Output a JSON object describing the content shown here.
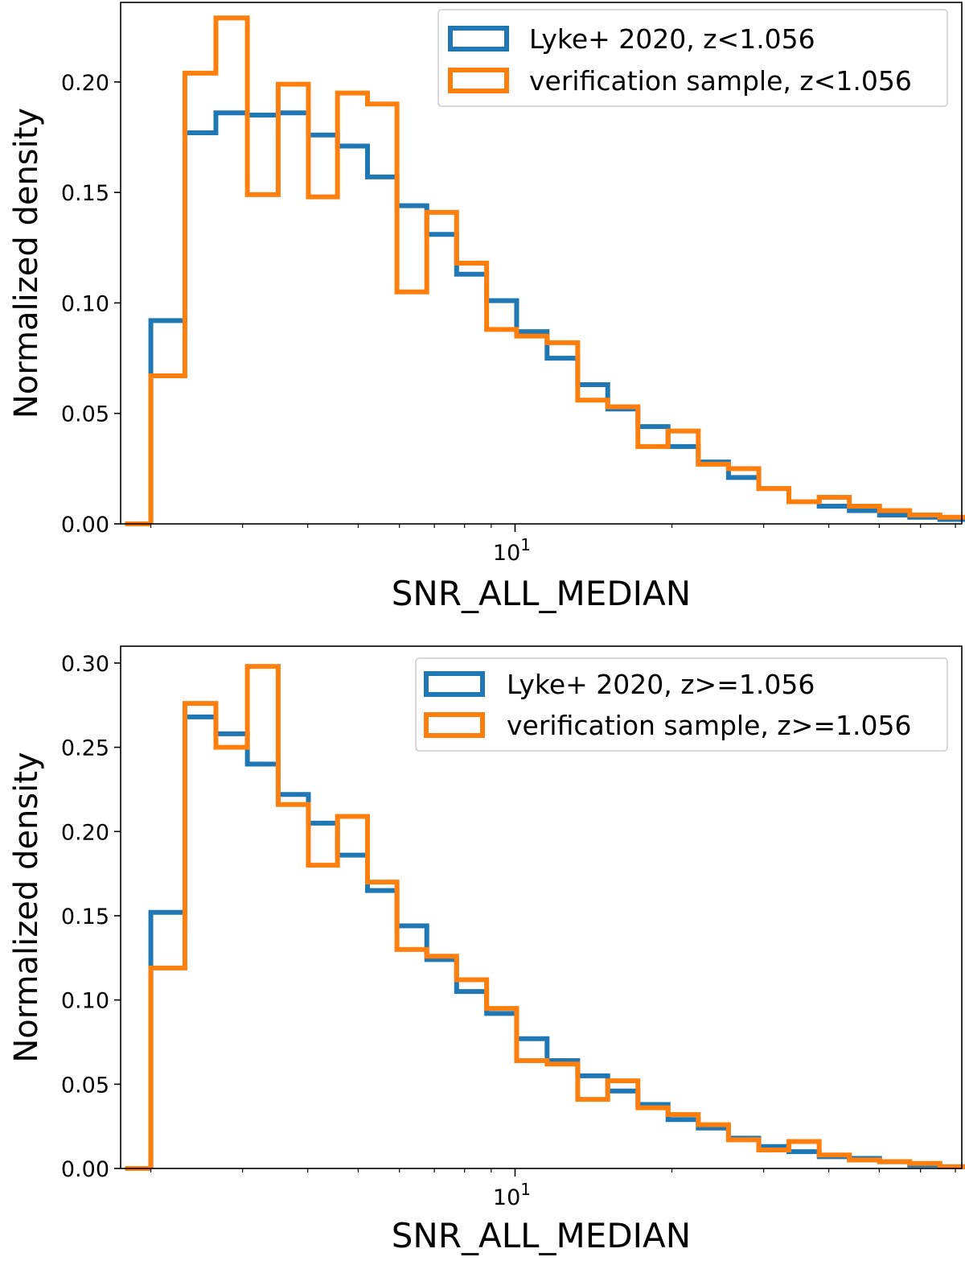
{
  "chart_data": [
    {
      "type": "histogram-step",
      "xscale": "log",
      "xlabel": "SNR_ALL_MEDIAN",
      "ylabel": "Normalized density",
      "xlim": [
        1.75,
        72.0
      ],
      "ylim": [
        0.0,
        0.236
      ],
      "x_ticks": [
        {
          "value": 10,
          "base": "10",
          "exp": "1"
        }
      ],
      "y_ticks": [
        "0.00",
        "0.05",
        "0.10",
        "0.15",
        "0.20"
      ],
      "legend_position": "top-right",
      "series": [
        {
          "name": "Lyke+ 2020, z<1.056",
          "color": "#1f77b4",
          "edges": [
            2.0,
            2.325,
            2.666,
            3.064,
            3.511,
            4.012,
            4.563,
            5.21,
            5.934,
            6.77,
            7.723,
            8.82,
            10.07,
            11.52,
            13.19,
            15.06,
            17.21,
            19.66,
            22.47,
            25.68,
            29.36,
            33.54,
            38.34,
            43.81,
            50.06,
            57.2,
            65.36
          ],
          "values": [
            0.092,
            0.177,
            0.186,
            0.185,
            0.186,
            0.176,
            0.171,
            0.157,
            0.144,
            0.131,
            0.113,
            0.101,
            0.087,
            0.075,
            0.063,
            0.052,
            0.044,
            0.035,
            0.028,
            0.021,
            0.016,
            0.01,
            0.008,
            0.006,
            0.004,
            0.003,
            0.002
          ]
        },
        {
          "name": "verification sample, z<1.056",
          "color": "#ff7f0e",
          "edges": [
            2.0,
            2.325,
            2.666,
            3.064,
            3.511,
            4.012,
            4.563,
            5.21,
            5.934,
            6.77,
            7.723,
            8.82,
            10.07,
            11.52,
            13.19,
            15.06,
            17.21,
            19.66,
            22.47,
            25.68,
            29.36,
            33.54,
            38.34,
            43.81,
            50.06,
            57.2,
            65.36
          ],
          "values": [
            0.067,
            0.204,
            0.229,
            0.149,
            0.199,
            0.148,
            0.195,
            0.19,
            0.105,
            0.141,
            0.118,
            0.088,
            0.085,
            0.082,
            0.056,
            0.053,
            0.035,
            0.042,
            0.027,
            0.025,
            0.016,
            0.01,
            0.012,
            0.008,
            0.006,
            0.004,
            0.003
          ]
        }
      ]
    },
    {
      "type": "histogram-step",
      "xscale": "log",
      "xlabel": "SNR_ALL_MEDIAN",
      "ylabel": "Normalized density",
      "xlim": [
        1.75,
        72.0
      ],
      "ylim": [
        0.0,
        0.31
      ],
      "x_ticks": [
        {
          "value": 10,
          "base": "10",
          "exp": "1"
        }
      ],
      "y_ticks": [
        "0.00",
        "0.05",
        "0.10",
        "0.15",
        "0.20",
        "0.25",
        "0.30"
      ],
      "legend_position": "top-right",
      "series": [
        {
          "name": "Lyke+ 2020, z>=1.056",
          "color": "#1f77b4",
          "edges": [
            2.0,
            2.325,
            2.666,
            3.064,
            3.511,
            4.012,
            4.563,
            5.21,
            5.934,
            6.77,
            7.723,
            8.82,
            10.07,
            11.52,
            13.19,
            15.06,
            17.21,
            19.66,
            22.47,
            25.68,
            29.36,
            33.54,
            38.34,
            43.81,
            50.06,
            57.2,
            65.36
          ],
          "values": [
            0.152,
            0.268,
            0.258,
            0.24,
            0.222,
            0.205,
            0.186,
            0.165,
            0.144,
            0.124,
            0.105,
            0.092,
            0.077,
            0.064,
            0.055,
            0.046,
            0.038,
            0.029,
            0.024,
            0.018,
            0.013,
            0.01,
            0.007,
            0.006,
            0.004,
            0.002,
            0.001
          ]
        },
        {
          "name": "verification sample, z>=1.056",
          "color": "#ff7f0e",
          "edges": [
            2.0,
            2.325,
            2.666,
            3.064,
            3.511,
            4.012,
            4.563,
            5.21,
            5.934,
            6.77,
            7.723,
            8.82,
            10.07,
            11.52,
            13.19,
            15.06,
            17.21,
            19.66,
            22.47,
            25.68,
            29.36,
            33.54,
            38.34,
            43.81,
            50.06,
            57.2,
            65.36
          ],
          "values": [
            0.119,
            0.276,
            0.25,
            0.298,
            0.216,
            0.18,
            0.209,
            0.17,
            0.13,
            0.126,
            0.112,
            0.095,
            0.064,
            0.062,
            0.041,
            0.052,
            0.036,
            0.032,
            0.026,
            0.017,
            0.011,
            0.016,
            0.008,
            0.005,
            0.004,
            0.003,
            0.001
          ]
        }
      ]
    }
  ]
}
